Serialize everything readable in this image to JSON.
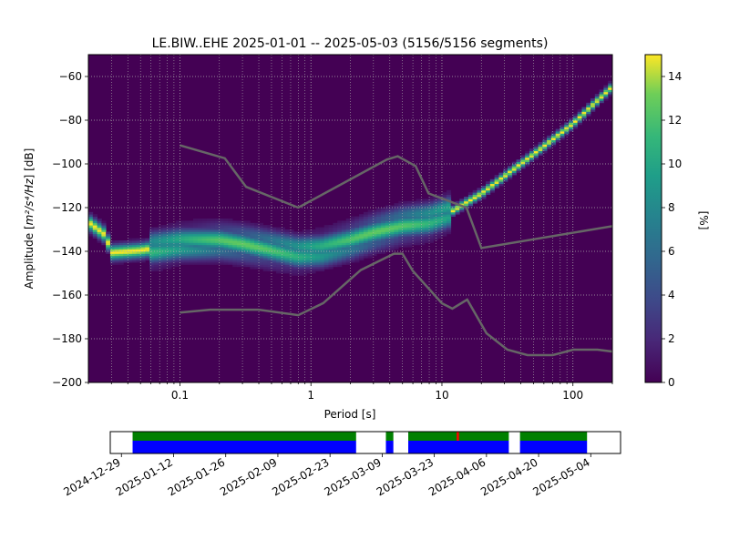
{
  "chart_data": {
    "type": "heatmap",
    "title": "LE.BIW..EHE   2025-01-01 -- 2025-05-03  (5156/5156 segments)",
    "xlabel": "Period [s]",
    "ylabel_prefix": "Amplitude [",
    "ylabel_math": "m²/s⁴/Hz",
    "ylabel_suffix": "] [dB]",
    "x_scale": "log",
    "xlim": [
      0.02,
      200
    ],
    "ylim": [
      -200,
      -50
    ],
    "x_ticks": [
      0.1,
      1,
      10,
      100
    ],
    "x_tick_labels": [
      "0.1",
      "1",
      "10",
      "100"
    ],
    "y_ticks": [
      -200,
      -180,
      -160,
      -140,
      -120,
      -100,
      -80,
      -60
    ],
    "y_tick_labels": [
      "−200",
      "−180",
      "−160",
      "−140",
      "−120",
      "−100",
      "−80",
      "−60"
    ],
    "grid": true,
    "colorbar": {
      "label": "[%]",
      "range": [
        0,
        15
      ],
      "ticks": [
        0,
        2,
        4,
        6,
        8,
        10,
        12,
        14
      ],
      "tick_labels": [
        "0",
        "2",
        "4",
        "6",
        "8",
        "10",
        "12",
        "14"
      ],
      "colormap": "viridis"
    },
    "psd_mode_band": [
      {
        "period": 0.02,
        "db": -127
      },
      {
        "period": 0.027,
        "db": -133
      },
      {
        "period": 0.03,
        "db": -141
      },
      {
        "period": 0.05,
        "db": -140
      },
      {
        "period": 0.1,
        "db": -137
      },
      {
        "period": 0.2,
        "db": -136
      },
      {
        "period": 0.3,
        "db": -137
      },
      {
        "period": 0.5,
        "db": -139
      },
      {
        "period": 0.8,
        "db": -141
      },
      {
        "period": 1.2,
        "db": -140
      },
      {
        "period": 2,
        "db": -136
      },
      {
        "period": 3,
        "db": -132
      },
      {
        "period": 5,
        "db": -128
      },
      {
        "period": 8,
        "db": -126
      },
      {
        "period": 12,
        "db": -122
      },
      {
        "period": 20,
        "db": -114
      },
      {
        "period": 50,
        "db": -96
      },
      {
        "period": 100,
        "db": -82
      },
      {
        "period": 200,
        "db": -65
      }
    ],
    "nhnm": [
      {
        "period": 0.1,
        "db": -91.5
      },
      {
        "period": 0.22,
        "db": -97.4
      },
      {
        "period": 0.32,
        "db": -110.5
      },
      {
        "period": 0.8,
        "db": -120
      },
      {
        "period": 3.8,
        "db": -98
      },
      {
        "period": 4.6,
        "db": -96.5
      },
      {
        "period": 6.3,
        "db": -101
      },
      {
        "period": 7.9,
        "db": -113.5
      },
      {
        "period": 15.4,
        "db": -120
      },
      {
        "period": 20,
        "db": -138.5
      },
      {
        "period": 354.8,
        "db": -126
      }
    ],
    "nlnm": [
      {
        "period": 0.1,
        "db": -168
      },
      {
        "period": 0.17,
        "db": -166.7
      },
      {
        "period": 0.4,
        "db": -166.7
      },
      {
        "period": 0.8,
        "db": -169.2
      },
      {
        "period": 1.24,
        "db": -163.7
      },
      {
        "period": 2.4,
        "db": -148.6
      },
      {
        "period": 4.3,
        "db": -141.1
      },
      {
        "period": 5,
        "db": -141.1
      },
      {
        "period": 6,
        "db": -149
      },
      {
        "period": 10,
        "db": -163.8
      },
      {
        "period": 12,
        "db": -166.2
      },
      {
        "period": 15.6,
        "db": -162.1
      },
      {
        "period": 21.9,
        "db": -177.5
      },
      {
        "period": 31.6,
        "db": -185
      },
      {
        "period": 45,
        "db": -187.5
      },
      {
        "period": 70,
        "db": -187.5
      },
      {
        "period": 101,
        "db": -185
      },
      {
        "period": 154,
        "db": -185
      },
      {
        "period": 328,
        "db": -187.5
      }
    ]
  },
  "timeline": {
    "tick_labels": [
      "2024-12-29",
      "2025-01-12",
      "2025-01-26",
      "2025-02-09",
      "2025-02-23",
      "2025-03-09",
      "2025-03-23",
      "2025-04-06",
      "2025-04-20",
      "2025-05-04"
    ],
    "range": [
      "2024-12-26",
      "2025-05-12"
    ],
    "coverage": [
      [
        "2025-01-01",
        "2025-03-02"
      ],
      [
        "2025-03-10",
        "2025-03-12"
      ],
      [
        "2025-03-16",
        "2025-04-12"
      ],
      [
        "2025-04-15",
        "2025-05-03"
      ]
    ],
    "gap_marker_date": "2025-03-29",
    "colors": {
      "data": "#0000ff",
      "processed": "#008000",
      "gap": "#ff0000"
    }
  },
  "colors": {
    "noise_model": "#666666",
    "grid": "#b0b0b0"
  }
}
